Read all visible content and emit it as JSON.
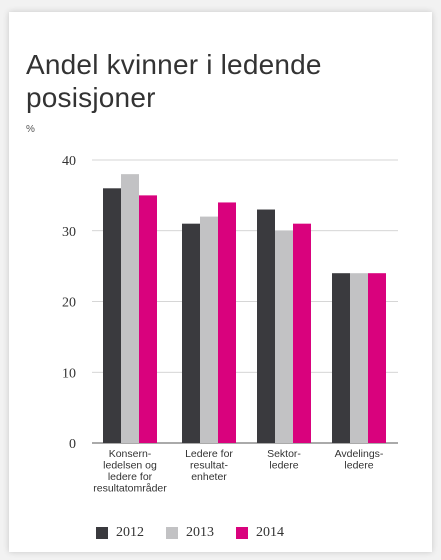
{
  "chart_data": {
    "type": "bar",
    "title": "Andel kvinner i ledende posisjoner",
    "ylabel": "%",
    "ylim": [
      0,
      40
    ],
    "yticks": [
      0,
      10,
      20,
      30,
      40
    ],
    "grid": true,
    "legend_position": "bottom",
    "categories": [
      [
        "Konsern-",
        "ledelsen og",
        "ledere for",
        "resultatområder"
      ],
      [
        "Ledere for",
        "resultat-",
        "enheter"
      ],
      [
        "Sektor-",
        "ledere"
      ],
      [
        "Avdelings-",
        "ledere"
      ]
    ],
    "series": [
      {
        "name": "2012",
        "color": "#3a3a3e",
        "values": [
          36,
          31,
          33,
          24
        ]
      },
      {
        "name": "2013",
        "color": "#c2c2c4",
        "values": [
          38,
          32,
          30,
          24
        ]
      },
      {
        "name": "2014",
        "color": "#d9027d",
        "values": [
          35,
          34,
          31,
          24
        ]
      }
    ]
  }
}
